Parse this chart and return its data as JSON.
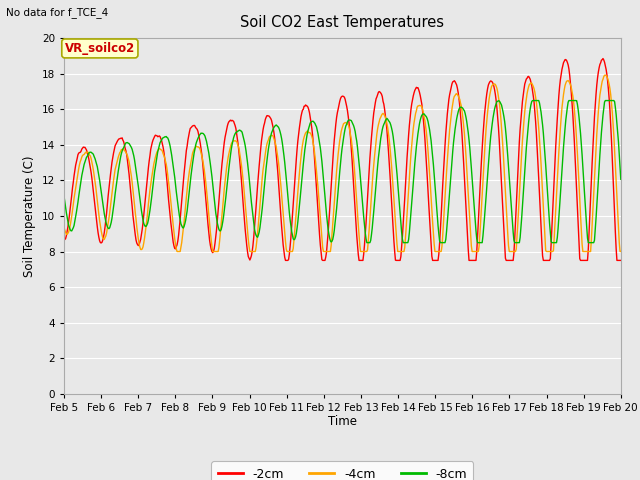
{
  "title": "Soil CO2 East Temperatures",
  "top_left_text": "No data for f_TCE_4",
  "ylabel": "Soil Temperature (C)",
  "xlabel": "Time",
  "legend_label": "VR_soilco2",
  "ylim": [
    0,
    20
  ],
  "yticks": [
    0,
    2,
    4,
    6,
    8,
    10,
    12,
    14,
    16,
    18,
    20
  ],
  "xtick_labels": [
    "Feb 5",
    "Feb 6",
    "Feb 7",
    "Feb 8",
    "Feb 9",
    "Feb 10",
    "Feb 11",
    "Feb 12",
    "Feb 13",
    "Feb 14",
    "Feb 15",
    "Feb 16",
    "Feb 17",
    "Feb 18",
    "Feb 19",
    "Feb 20"
  ],
  "color_2cm": "#ff0000",
  "color_4cm": "#ffa500",
  "color_8cm": "#00bb00",
  "label_2cm": "-2cm",
  "label_4cm": "-4cm",
  "label_8cm": "-8cm",
  "bg_color": "#e8e8e8",
  "plot_bg_color": "#e8e8e8",
  "legend_bg": "#ffffcc",
  "legend_border": "#aaaa00",
  "linewidth": 1.0
}
